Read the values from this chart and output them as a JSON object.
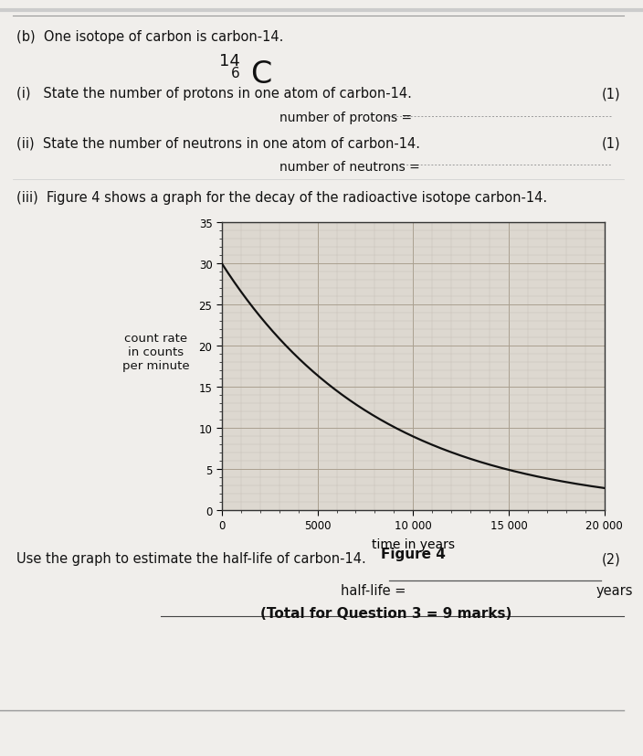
{
  "page_bg": "#f0eeeb",
  "plot_bg": "#ddd8d0",
  "text_color": "#111111",
  "title_b": "(b)  One isotope of carbon is carbon-14.",
  "isotope_superscript": "14",
  "isotope_subscript": "6",
  "isotope_symbol": "C",
  "q_i_text": "(i)   State the number of protons in one atom of carbon-14.",
  "q_i_marks": "(1)",
  "q_i_answer_label": "number of protons =",
  "q_ii_text": "(ii)  State the number of neutrons in one atom of carbon-14.",
  "q_ii_marks": "(1)",
  "q_ii_answer_label": "number of neutrons =",
  "q_iii_text": "(iii)  Figure 4 shows a graph for the decay of the radioactive isotope carbon-14.",
  "ylabel": "count rate\nin counts\nper minute",
  "xlabel": "time in years",
  "figure_label": "Figure 4",
  "yticks": [
    0,
    5,
    10,
    15,
    20,
    25,
    30,
    35
  ],
  "xtick_vals": [
    0,
    5000,
    10000,
    15000,
    20000
  ],
  "xtick_labels": [
    "0",
    "5000",
    "10 000",
    "15 000",
    "20 000"
  ],
  "xlim": [
    0,
    20000
  ],
  "ylim": [
    0,
    35
  ],
  "half_life_question": "Use the graph to estimate the half-life of carbon-14.",
  "half_life_marks": "(2)",
  "half_life_label": "half-life =",
  "half_life_unit": "years",
  "total_marks": "(Total for Question 3 = 9 marks)",
  "curve_color": "#111111",
  "grid_major_color": "#aaa090",
  "grid_minor_color": "#c0bab0",
  "decay_constant": 0.00012096,
  "initial_count": 30.0
}
